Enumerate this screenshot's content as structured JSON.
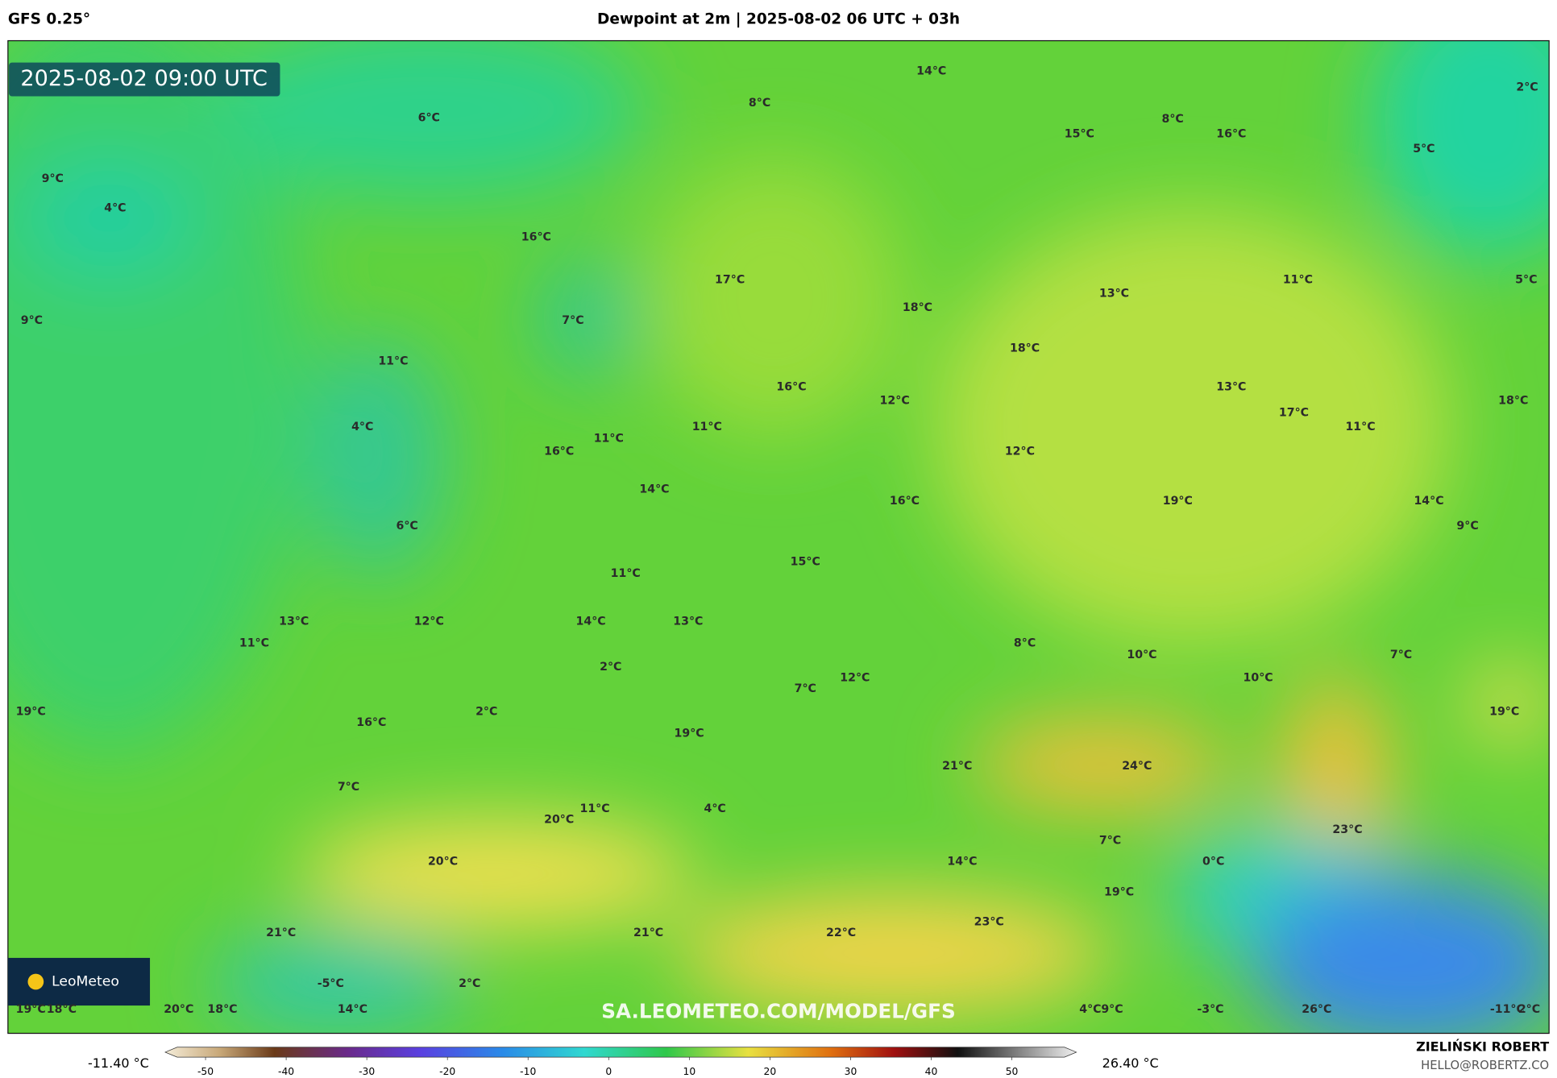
{
  "header": {
    "model": "GFS 0.25°",
    "title": "Dewpoint at 2m | 2025-08-02 06 UTC + 03h"
  },
  "map": {
    "timestamp": "2025-08-02 09:00 UTC",
    "logo": "LeoMeteo",
    "watermark": "SA.LEOMETEO.COM/MODEL/GFS",
    "labels": [
      "14°C",
      "8°C",
      "6°C",
      "15°C",
      "8°C",
      "16°C",
      "5°C",
      "2°C",
      "9°C",
      "4°C",
      "16°C",
      "17°C",
      "18°C",
      "13°C",
      "11°C",
      "5°C",
      "9°C",
      "7°C",
      "11°C",
      "18°C",
      "16°C",
      "12°C",
      "13°C",
      "17°C",
      "11°C",
      "18°C",
      "4°C",
      "16°C",
      "11°C",
      "11°C",
      "12°C",
      "14°C",
      "16°C",
      "19°C",
      "14°C",
      "9°C",
      "6°C",
      "11°C",
      "15°C",
      "13°C",
      "12°C",
      "14°C",
      "13°C",
      "11°C",
      "8°C",
      "10°C",
      "7°C",
      "2°C",
      "12°C",
      "10°C",
      "7°C",
      "19°C",
      "2°C",
      "16°C",
      "19°C",
      "19°C",
      "21°C",
      "24°C",
      "7°C",
      "20°C",
      "11°C",
      "4°C",
      "23°C",
      "7°C",
      "0°C",
      "14°C",
      "20°C",
      "19°C",
      "23°C",
      "21°C",
      "21°C",
      "22°C",
      "-5°C",
      "2°C",
      "20°C",
      "18°C",
      "19°C",
      "18°C",
      "14°C",
      "4°C",
      "9°C",
      "-3°C",
      "26°C",
      "-11°C",
      "2°C"
    ]
  },
  "colorbar": {
    "min_label": "-11.40 °C",
    "max_label": "26.40 °C",
    "lim": [
      -55,
      58
    ],
    "ticks": [
      -50,
      -40,
      -30,
      -20,
      -10,
      0,
      10,
      20,
      30,
      40,
      50
    ]
  },
  "footer": {
    "author": "ZIELIŃSKI ROBERT",
    "contact": "HELLO@ROBERTZ.CO"
  }
}
